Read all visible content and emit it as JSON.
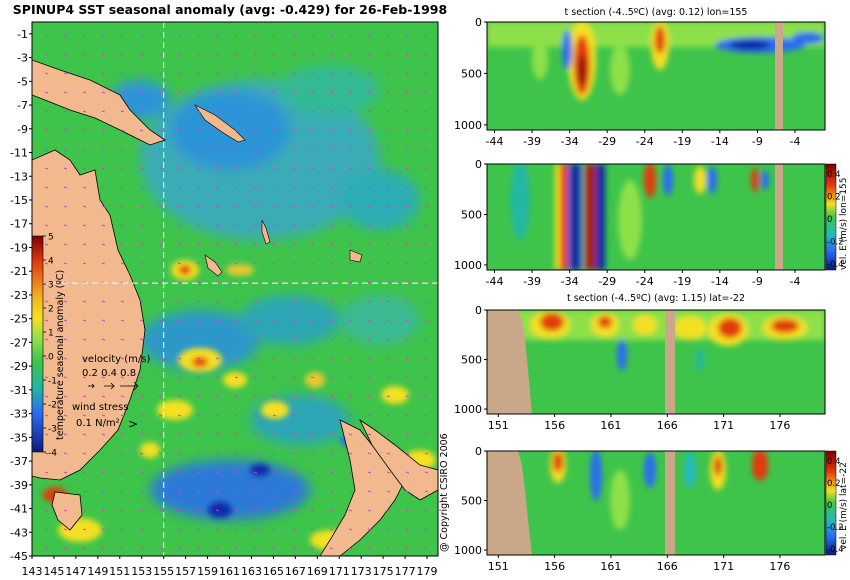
{
  "chart_data": [
    {
      "type": "heatmap",
      "panel": "map",
      "title": "SPINUP4 SST seasonal anomaly (avg: -0.429) for 26-Feb-1998",
      "xlabel": "",
      "ylabel": "",
      "xlim": [
        143,
        180
      ],
      "ylim": [
        -45,
        0
      ],
      "x_ticks": [
        143,
        145,
        147,
        149,
        151,
        153,
        155,
        157,
        159,
        161,
        163,
        165,
        167,
        169,
        171,
        173,
        175,
        177,
        179
      ],
      "y_ticks": [
        -1,
        -3,
        -5,
        -7,
        -9,
        -11,
        -13,
        -15,
        -17,
        -19,
        -21,
        -23,
        -25,
        -27,
        -29,
        -31,
        -33,
        -35,
        -37,
        -39,
        -41,
        -43,
        -45
      ],
      "section_lines": {
        "lon": 155,
        "lat": -22
      },
      "colorbar": {
        "label": "temperature seasonal anomaly (ºC)",
        "ticks": [
          5,
          4,
          3,
          2,
          1,
          0,
          -1,
          -2,
          -3,
          -4
        ],
        "range": [
          -4,
          5
        ]
      },
      "velocity_legend": {
        "label": "velocity (m/s)",
        "values": "0.2 0.4 0.8"
      },
      "wind_legend": {
        "label": "wind stress",
        "value": "0.1 N/m²"
      }
    },
    {
      "type": "heatmap",
      "panel": "t-section-lon155",
      "title": "t section (-4..5ºC) (avg: 0.12) lon=155",
      "xlim": [
        -45,
        0
      ],
      "ylim": [
        1050,
        0
      ],
      "x_ticks": [
        -44,
        -39,
        -34,
        -29,
        -24,
        -19,
        -14,
        -9,
        -4
      ],
      "y_ticks": [
        0,
        500,
        1000
      ]
    },
    {
      "type": "heatmap",
      "panel": "vel-section-lon155",
      "colorbar_label": "vel. E (m/s) lon=155",
      "colorbar_ticks": [
        "0.4",
        "0.2",
        "0",
        "-0.2",
        "-0.4"
      ],
      "xlim": [
        -45,
        0
      ],
      "ylim": [
        1050,
        0
      ],
      "x_ticks": [
        -44,
        -39,
        -34,
        -29,
        -24,
        -19,
        -14,
        -9,
        -4
      ],
      "y_ticks": [
        0,
        500,
        1000
      ]
    },
    {
      "type": "heatmap",
      "panel": "t-section-lat-22",
      "title": "t section (-4..5ºC) (avg: 1.15) lat=-22",
      "xlim": [
        150,
        180
      ],
      "ylim": [
        1050,
        0
      ],
      "x_ticks": [
        151,
        156,
        161,
        166,
        171,
        176
      ],
      "y_ticks": [
        0,
        500,
        1000
      ]
    },
    {
      "type": "heatmap",
      "panel": "vel-section-lat-22",
      "colorbar_label": "vel. E (m/s) lat=-22",
      "colorbar_ticks": [
        "0.4",
        "0.2",
        "0",
        "-0.2",
        "-0.4"
      ],
      "xlim": [
        150,
        180
      ],
      "ylim": [
        1050,
        0
      ],
      "x_ticks": [
        151,
        156,
        161,
        166,
        171,
        176
      ],
      "y_ticks": [
        0,
        500,
        1000
      ]
    }
  ],
  "copyright": "@ Copyright CSIRO 2006",
  "colors": {
    "ocean_green": "#3ec44a",
    "land": "#d9b08c",
    "warm": "#f4e020",
    "hot": "#e23a10",
    "cold": "#2a6df0",
    "deep_cold": "#0a2aa8",
    "gap": "#c9a88a"
  }
}
